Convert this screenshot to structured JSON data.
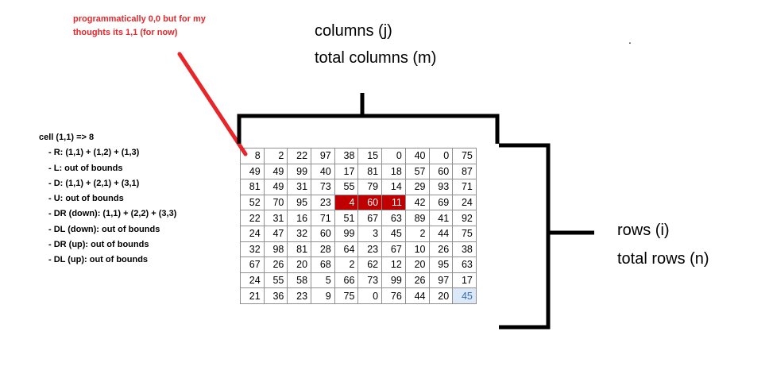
{
  "note": {
    "line1": "programmatically 0,0 but for my",
    "line2": "thoughts its 1,1 (for now)",
    "color": "#e8262a"
  },
  "columns_label": {
    "line1": "columns (j)",
    "line2": "total columns (m)"
  },
  "rows_label": {
    "line1": "rows (i)",
    "line2": "total rows (n)"
  },
  "dot": ".",
  "steps": {
    "title": "cell (1,1) => 8",
    "items": [
      "- R: (1,1) + (1,2) + (1,3)",
      "- L:  out of bounds",
      "- D: (1,1) + (2,1) + (3,1)",
      "- U: out of bounds",
      "- DR (down): (1,1) + (2,2) + (3,3)",
      "- DL  (down): out of bounds",
      "- DR (up): out of bounds",
      "- DL (up): out of bounds"
    ]
  },
  "grid": {
    "rows": [
      [
        "8",
        "2",
        "22",
        "97",
        "38",
        "15",
        "0",
        "40",
        "0",
        "75"
      ],
      [
        "49",
        "49",
        "99",
        "40",
        "17",
        "81",
        "18",
        "57",
        "60",
        "87"
      ],
      [
        "81",
        "49",
        "31",
        "73",
        "55",
        "79",
        "14",
        "29",
        "93",
        "71"
      ],
      [
        "52",
        "70",
        "95",
        "23",
        "4",
        "60",
        "11",
        "42",
        "69",
        "24"
      ],
      [
        "22",
        "31",
        "16",
        "71",
        "51",
        "67",
        "63",
        "89",
        "41",
        "92"
      ],
      [
        "24",
        "47",
        "32",
        "60",
        "99",
        "3",
        "45",
        "2",
        "44",
        "75"
      ],
      [
        "32",
        "98",
        "81",
        "28",
        "64",
        "23",
        "67",
        "10",
        "26",
        "38"
      ],
      [
        "67",
        "26",
        "20",
        "68",
        "2",
        "62",
        "12",
        "20",
        "95",
        "63"
      ],
      [
        "24",
        "55",
        "58",
        "5",
        "66",
        "73",
        "99",
        "26",
        "97",
        "17"
      ],
      [
        "21",
        "36",
        "23",
        "9",
        "75",
        "0",
        "76",
        "44",
        "20",
        "45"
      ]
    ],
    "highlight_color": "#c00000",
    "last_cell_color": "#dbe8f7"
  }
}
